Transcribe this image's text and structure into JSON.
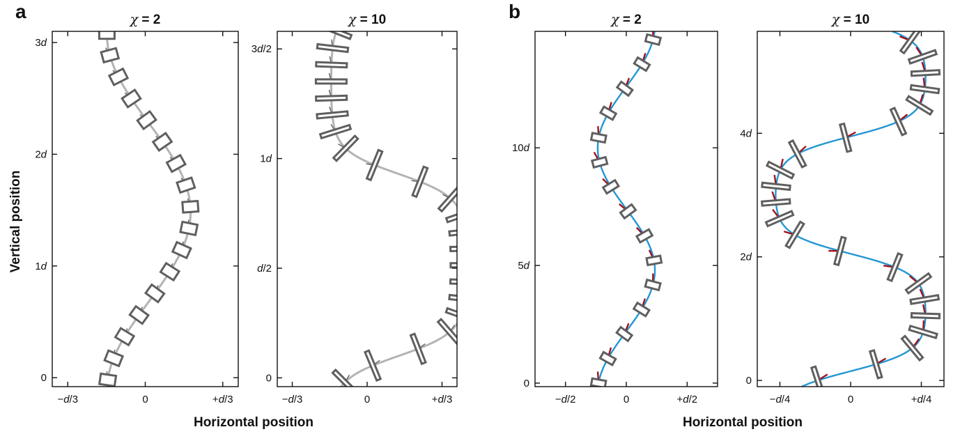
{
  "panel_letters": {
    "a": "a",
    "b": "b"
  },
  "axis_labels": {
    "a_x": "Horizontal position",
    "a_y": "Vertical position",
    "b_x": "Horizontal position"
  },
  "colors": {
    "curve_a": "#b3b3b3",
    "curve_b": "#2196d3",
    "box": "#5f5f5f",
    "whisker_a": "#5f5f5f",
    "whisker_b": "#a3121c",
    "axis": "#111111"
  },
  "chart_data": [
    {
      "type": "line",
      "title": "χ = 2",
      "title_prefix": "χ",
      "title_suffix": " = 2",
      "group": "a",
      "xlabel": "Horizontal position",
      "ylabel": "Vertical position",
      "xlim": [
        -0.4,
        0.4
      ],
      "ylim": [
        -0.08,
        3.1
      ],
      "x_ticks": [
        {
          "v": -0.3333,
          "label": "−d/3"
        },
        {
          "v": 0,
          "label": "0"
        },
        {
          "v": 0.3333,
          "label": "+d/3"
        }
      ],
      "y_ticks": [
        {
          "v": 0,
          "label": "0"
        },
        {
          "v": 1,
          "label": "1d"
        },
        {
          "v": 2,
          "label": "2d"
        },
        {
          "v": 3,
          "label": "3d"
        }
      ],
      "curve": {
        "amplitude": 0.18,
        "period": 3.2,
        "phase_y": 0.68,
        "offset": 0.015
      },
      "markers": {
        "count": 17,
        "y_start": -0.02,
        "y_end": 3.08,
        "box_w": 22,
        "box_h": 15,
        "style": "ortho"
      }
    },
    {
      "type": "line",
      "title": "χ = 10",
      "title_prefix": "χ",
      "title_suffix": " = 10",
      "group": "a",
      "xlabel": "Horizontal position",
      "ylabel": "",
      "xlim": [
        -0.4,
        0.4
      ],
      "ylim": [
        -0.04,
        1.58
      ],
      "x_ticks": [
        {
          "v": -0.3333,
          "label": "−d/3"
        },
        {
          "v": 0,
          "label": "0"
        },
        {
          "v": 0.3333,
          "label": "+d/3"
        }
      ],
      "y_ticks": [
        {
          "v": 0,
          "label": "0"
        },
        {
          "v": 0.5,
          "label": "d/2"
        },
        {
          "v": 1,
          "label": "1d"
        },
        {
          "v": 1.5,
          "label": "3d/2"
        }
      ],
      "curve": {
        "amplitude": 0.3,
        "period": 1.66,
        "phase_y": 0.1,
        "offset": 0.14,
        "sharpness": 2.4
      },
      "markers": {
        "count": 22,
        "y_start": -0.02,
        "y_end": 1.58,
        "box_w": 44,
        "box_h": 6,
        "style": "lamellar"
      }
    },
    {
      "type": "line",
      "title": "χ = 2",
      "title_prefix": "χ",
      "title_suffix": " = 2",
      "group": "b",
      "xlabel": "Horizontal position",
      "ylabel": "",
      "xlim": [
        -0.75,
        0.75
      ],
      "ylim": [
        -0.15,
        14.95
      ],
      "x_ticks": [
        {
          "v": -0.5,
          "label": "−d/2"
        },
        {
          "v": 0,
          "label": "0"
        },
        {
          "v": 0.5,
          "label": "+d/2"
        }
      ],
      "y_ticks": [
        {
          "v": 0,
          "label": "0"
        },
        {
          "v": 5,
          "label": "5d"
        },
        {
          "v": 10,
          "label": "10d"
        }
      ],
      "curve": {
        "amplitude": 0.235,
        "period": 10.4,
        "phase_y": 2.2,
        "offset": 0.0
      },
      "markers": {
        "count": 15,
        "y_start": 0,
        "y_end": 14.6,
        "box_w": 20,
        "box_h": 10,
        "style": "ortho"
      }
    },
    {
      "type": "line",
      "title": "χ = 10",
      "title_prefix": "χ",
      "title_suffix": " = 10",
      "group": "b",
      "xlabel": "Horizontal position",
      "ylabel": "",
      "xlim": [
        -0.33,
        0.33
      ],
      "ylim": [
        -0.1,
        5.65
      ],
      "x_ticks": [
        {
          "v": -0.25,
          "label": "−d/4"
        },
        {
          "v": 0,
          "label": "0"
        },
        {
          "v": 0.25,
          "label": "+d/4"
        }
      ],
      "y_ticks": [
        {
          "v": 0,
          "label": "0"
        },
        {
          "v": 2,
          "label": "2d"
        },
        {
          "v": 4,
          "label": "4d"
        }
      ],
      "curve": {
        "amplitude": 0.265,
        "period": 3.8,
        "phase_y": 0.15,
        "offset": 0.0,
        "sharpness": 1.8
      },
      "markers": {
        "count": 22,
        "y_start": 0,
        "y_end": 5.5,
        "box_w": 40,
        "box_h": 6,
        "style": "lamellar"
      }
    }
  ]
}
